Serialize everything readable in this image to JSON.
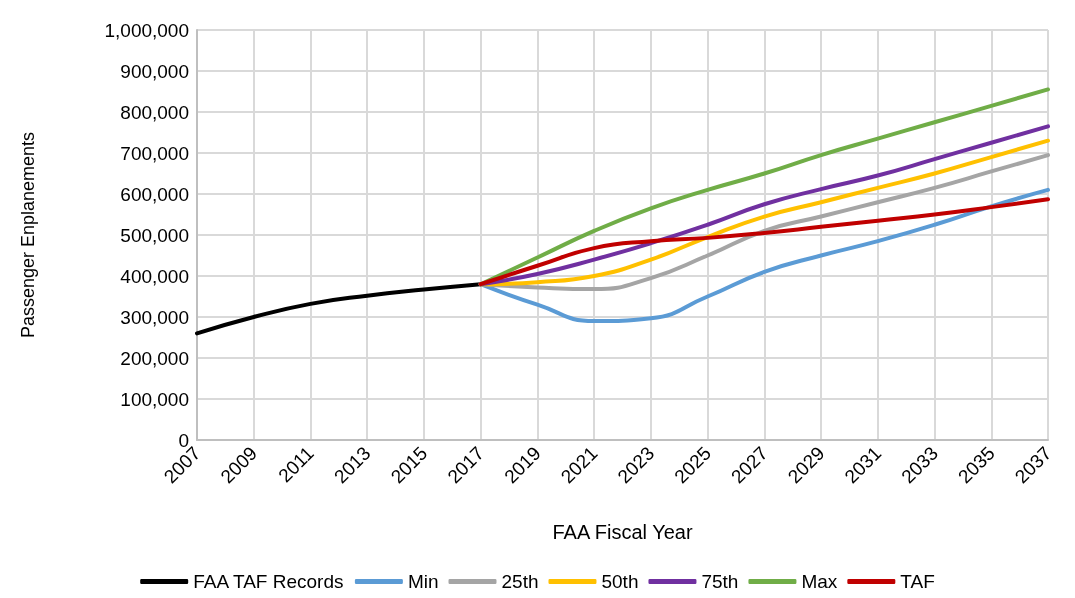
{
  "chart_data": {
    "type": "line",
    "xlabel": "FAA Fiscal Year",
    "ylabel": "Passenger Enplanements",
    "xlim": [
      2007,
      2037
    ],
    "xticks": [
      2007,
      2009,
      2011,
      2013,
      2015,
      2017,
      2019,
      2021,
      2023,
      2025,
      2027,
      2029,
      2031,
      2033,
      2035,
      2037
    ],
    "ylim": [
      0,
      1000000
    ],
    "yticks": [
      0,
      {
        "value": 100000,
        "label": "100,000"
      },
      {
        "value": 200000,
        "label": "200,000"
      },
      {
        "value": 300000,
        "label": "300,000"
      },
      {
        "value": 400000,
        "label": "400,000"
      },
      {
        "value": 500000,
        "label": "500,000"
      },
      {
        "value": 600000,
        "label": "600,000"
      },
      {
        "value": 700000,
        "label": "700,000"
      },
      {
        "value": 800000,
        "label": "800,000"
      },
      {
        "value": 900000,
        "label": "900,000"
      },
      {
        "value": 1000000,
        "label": "1,000,000"
      }
    ],
    "grid": true,
    "legend": "bottom",
    "marker": "none",
    "line_style": "solid",
    "series": [
      {
        "name": "FAA TAF Records",
        "color": "#000000",
        "x": [
          2007,
          2009,
          2011,
          2013,
          2015,
          2017
        ],
        "values": [
          260000,
          300000,
          332000,
          352000,
          367000,
          380000
        ]
      },
      {
        "name": "Min",
        "color": "#5b9bd5",
        "x": [
          2017,
          2019,
          2021,
          2023,
          2025,
          2027,
          2029,
          2031,
          2033,
          2035,
          2037
        ],
        "values": [
          380000,
          330000,
          290000,
          297000,
          350000,
          410000,
          450000,
          485000,
          525000,
          570000,
          610000
        ]
      },
      {
        "name": "25th",
        "color": "#a5a5a5",
        "x": [
          2017,
          2019,
          2021,
          2023,
          2025,
          2027,
          2029,
          2031,
          2033,
          2035,
          2037
        ],
        "values": [
          380000,
          372000,
          368000,
          395000,
          450000,
          510000,
          545000,
          580000,
          615000,
          655000,
          695000
        ]
      },
      {
        "name": "50th",
        "color": "#ffc000",
        "x": [
          2017,
          2019,
          2021,
          2023,
          2025,
          2027,
          2029,
          2031,
          2033,
          2035,
          2037
        ],
        "values": [
          380000,
          385000,
          400000,
          440000,
          495000,
          545000,
          580000,
          615000,
          650000,
          690000,
          730000
        ]
      },
      {
        "name": "75th",
        "color": "#7030a0",
        "x": [
          2017,
          2019,
          2021,
          2023,
          2025,
          2027,
          2029,
          2031,
          2033,
          2035,
          2037
        ],
        "values": [
          380000,
          405000,
          440000,
          480000,
          525000,
          575000,
          612000,
          645000,
          685000,
          725000,
          765000
        ]
      },
      {
        "name": "Max",
        "color": "#70ad47",
        "x": [
          2017,
          2019,
          2021,
          2023,
          2025,
          2027,
          2029,
          2031,
          2033,
          2035,
          2037
        ],
        "values": [
          380000,
          445000,
          510000,
          565000,
          610000,
          650000,
          695000,
          735000,
          775000,
          815000,
          855000
        ]
      },
      {
        "name": "TAF",
        "color": "#c00000",
        "x": [
          2017,
          2019,
          2021,
          2023,
          2025,
          2027,
          2029,
          2031,
          2033,
          2035,
          2037
        ],
        "values": [
          380000,
          425000,
          468000,
          485000,
          493000,
          505000,
          520000,
          535000,
          550000,
          568000,
          587000
        ]
      }
    ]
  }
}
